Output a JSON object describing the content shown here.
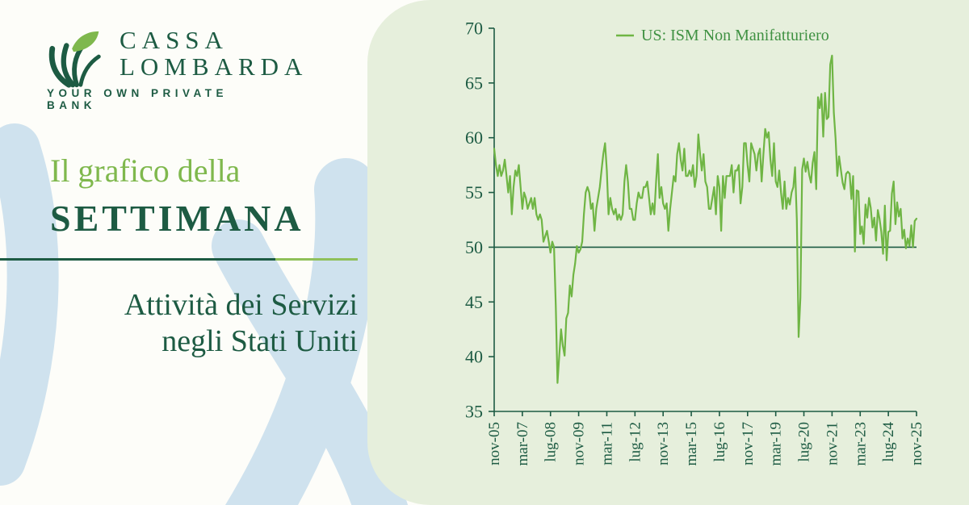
{
  "brand": {
    "name_line1": "CASSA",
    "name_line2": "LOMBARDA",
    "tagline": "YOUR OWN PRIVATE BANK"
  },
  "left": {
    "title_light": "Il grafico della",
    "title_dark": "SETTIMANA",
    "subtitle_line1": "Attività dei Servizi",
    "subtitle_line2": "negli Stati Uniti"
  },
  "colors": {
    "dark_green": "#1d5b43",
    "light_green_text": "#7fb84d",
    "line_green": "#6fb544",
    "legend_green": "#3f9142",
    "panel_green": "#e6efdc",
    "brush_blue": "#cfe2ee"
  },
  "chart_data": {
    "type": "line",
    "title": "",
    "legend": [
      "US: ISM Non Manifatturiero"
    ],
    "legend_position": "top",
    "grid": false,
    "ylim": [
      35,
      70
    ],
    "yticks": [
      35,
      40,
      45,
      50,
      55,
      60,
      65,
      70
    ],
    "reference_line_y": 50,
    "x_frequency": "monthly",
    "x_start": "nov-05",
    "x_end": "nov-25",
    "xtick_labels": [
      "nov-05",
      "mar-07",
      "lug-08",
      "nov-09",
      "mar-11",
      "lug-12",
      "nov-13",
      "mar-15",
      "lug-16",
      "nov-17",
      "mar-19",
      "lug-20",
      "nov-21",
      "mar-23",
      "lug-24",
      "nov-25"
    ],
    "xtick_interval_months": 16,
    "series": [
      {
        "name": "US: ISM Non Manifatturiero",
        "color": "#6fb544",
        "values": [
          59.0,
          57.5,
          56.5,
          57.5,
          56.5,
          57.0,
          58.0,
          56.5,
          55.0,
          56.5,
          53.0,
          55.5,
          57.0,
          56.5,
          57.5,
          55.5,
          53.5,
          55.0,
          54.5,
          53.5,
          54.0,
          54.5,
          53.5,
          54.5,
          53.0,
          52.5,
          53.0,
          52.5,
          50.5,
          51.0,
          51.5,
          50.5,
          49.5,
          50.5,
          50.0,
          44.6,
          37.6,
          40.1,
          42.5,
          41.0,
          40.1,
          43.5,
          44.0,
          46.5,
          45.5,
          47.5,
          48.5,
          50.1,
          49.5,
          49.8,
          50.5,
          53.0,
          55.0,
          55.5,
          55.0,
          53.5,
          54.0,
          51.5,
          53.5,
          54.5,
          55.5,
          57.0,
          58.5,
          59.5,
          57.0,
          53.0,
          54.5,
          53.5,
          53.0,
          53.5,
          52.5,
          53.0,
          52.5,
          53.0,
          56.0,
          57.5,
          56.0,
          53.5,
          53.5,
          52.5,
          52.5,
          54.0,
          55.0,
          54.5,
          54.5,
          55.5,
          55.5,
          56.0,
          54.5,
          53.0,
          54.0,
          53.0,
          56.0,
          58.5,
          54.5,
          55.5,
          54.0,
          53.5,
          54.0,
          51.5,
          53.5,
          55.0,
          56.5,
          56.0,
          58.5,
          59.5,
          58.0,
          57.0,
          59.0,
          56.5,
          56.5,
          57.0,
          56.5,
          57.5,
          55.5,
          56.5,
          60.3,
          58.5,
          57.0,
          58.5,
          56.0,
          55.5,
          53.5,
          53.5,
          54.5,
          55.5,
          53.0,
          56.5,
          55.5,
          51.5,
          56.5,
          54.5,
          56.5,
          56.5,
          56.5,
          57.5,
          55.0,
          57.0,
          57.0,
          57.5,
          54.0,
          55.5,
          59.5,
          59.5,
          57.5,
          56.0,
          59.5,
          59.0,
          58.5,
          57.0,
          58.5,
          59.0,
          56.0,
          58.5,
          60.8,
          60.0,
          60.5,
          58.0,
          56.5,
          59.5,
          56.0,
          55.5,
          57.0,
          55.0,
          53.5,
          56.0,
          53.5,
          54.5,
          53.9,
          55.0,
          55.5,
          57.3,
          52.5,
          41.8,
          45.4,
          57.1,
          58.1,
          56.9,
          57.8,
          56.6,
          55.9,
          57.7,
          58.7,
          55.3,
          63.7,
          62.7,
          64.0,
          60.1,
          64.1,
          61.7,
          61.9,
          66.7,
          67.5,
          62.3,
          59.9,
          56.5,
          58.3,
          57.1,
          55.9,
          55.3,
          56.7,
          56.9,
          56.7,
          54.4,
          56.5,
          49.6,
          55.2,
          55.1,
          51.2,
          51.9,
          50.3,
          53.9,
          52.7,
          54.5,
          53.6,
          51.8,
          52.7,
          50.6,
          53.4,
          52.6,
          51.4,
          49.4,
          53.8,
          48.8,
          51.4,
          51.5,
          54.9,
          56.0,
          52.1,
          54.1,
          52.8,
          53.5,
          50.8,
          51.6,
          49.9,
          50.8,
          50.1,
          52.0,
          50.0,
          52.4,
          52.6
        ]
      }
    ]
  }
}
